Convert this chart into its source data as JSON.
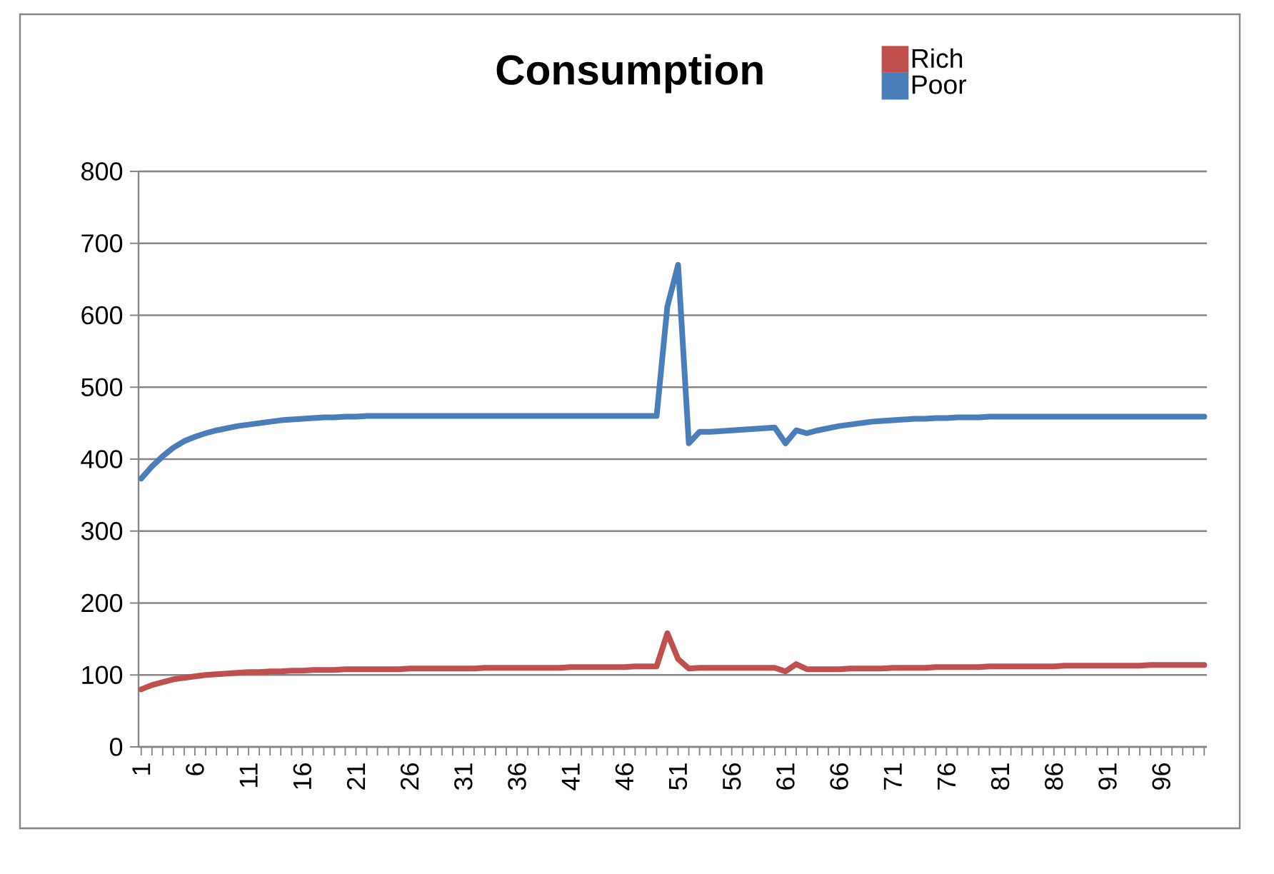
{
  "chart_data": {
    "type": "line",
    "title": "Consumption",
    "categories": [
      "1",
      null,
      null,
      null,
      null,
      "6",
      null,
      null,
      null,
      null,
      "11",
      null,
      null,
      null,
      null,
      "16",
      null,
      null,
      null,
      null,
      "21",
      null,
      null,
      null,
      null,
      "26",
      null,
      null,
      null,
      null,
      "31",
      null,
      null,
      null,
      null,
      "36",
      null,
      null,
      null,
      null,
      "41",
      null,
      null,
      null,
      null,
      "46",
      null,
      null,
      null,
      null,
      "51",
      null,
      null,
      null,
      null,
      "56",
      null,
      null,
      null,
      null,
      "61",
      null,
      null,
      null,
      null,
      "66",
      null,
      null,
      null,
      null,
      "71",
      null,
      null,
      null,
      null,
      "76",
      null,
      null,
      null,
      null,
      "81",
      null,
      null,
      null,
      null,
      "86",
      null,
      null,
      null,
      null,
      "91",
      null,
      null,
      null,
      null,
      "96",
      null,
      null,
      null,
      null
    ],
    "series": [
      {
        "name": "Rich",
        "color": "#c0504d",
        "values": [
          80,
          86,
          90,
          94,
          96,
          98,
          100,
          101,
          102,
          103,
          104,
          104,
          105,
          105,
          106,
          106,
          107,
          107,
          107,
          108,
          108,
          108,
          108,
          108,
          108,
          109,
          109,
          109,
          109,
          109,
          109,
          109,
          110,
          110,
          110,
          110,
          110,
          110,
          110,
          110,
          111,
          111,
          111,
          111,
          111,
          111,
          112,
          112,
          112,
          158,
          122,
          109,
          110,
          110,
          110,
          110,
          110,
          110,
          110,
          110,
          105,
          115,
          108,
          108,
          108,
          108,
          109,
          109,
          109,
          109,
          110,
          110,
          110,
          110,
          111,
          111,
          111,
          111,
          111,
          112,
          112,
          112,
          112,
          112,
          112,
          112,
          113,
          113,
          113,
          113,
          113,
          113,
          113,
          113,
          114,
          114,
          114,
          114,
          114,
          114
        ]
      },
      {
        "name": "Poor",
        "color": "#4a7ebb",
        "values": [
          373,
          390,
          404,
          416,
          425,
          431,
          436,
          440,
          443,
          446,
          448,
          450,
          452,
          454,
          455,
          456,
          457,
          458,
          458,
          459,
          459,
          460,
          460,
          460,
          460,
          460,
          460,
          460,
          460,
          460,
          460,
          460,
          460,
          460,
          460,
          460,
          460,
          460,
          460,
          460,
          460,
          460,
          460,
          460,
          460,
          460,
          460,
          460,
          460,
          612,
          670,
          422,
          438,
          438,
          439,
          440,
          441,
          442,
          443,
          444,
          422,
          440,
          436,
          440,
          443,
          446,
          448,
          450,
          452,
          453,
          454,
          455,
          456,
          456,
          457,
          457,
          458,
          458,
          458,
          459,
          459,
          459,
          459,
          459,
          459,
          459,
          459,
          459,
          459,
          459,
          459,
          459,
          459,
          459,
          459,
          459,
          459,
          459,
          459,
          459
        ]
      }
    ],
    "ylim": [
      0,
      800
    ],
    "yticks": [
      0,
      100,
      200,
      300,
      400,
      500,
      600,
      700,
      800
    ],
    "grid": "y",
    "legend": "top right",
    "line_style": "solid"
  }
}
